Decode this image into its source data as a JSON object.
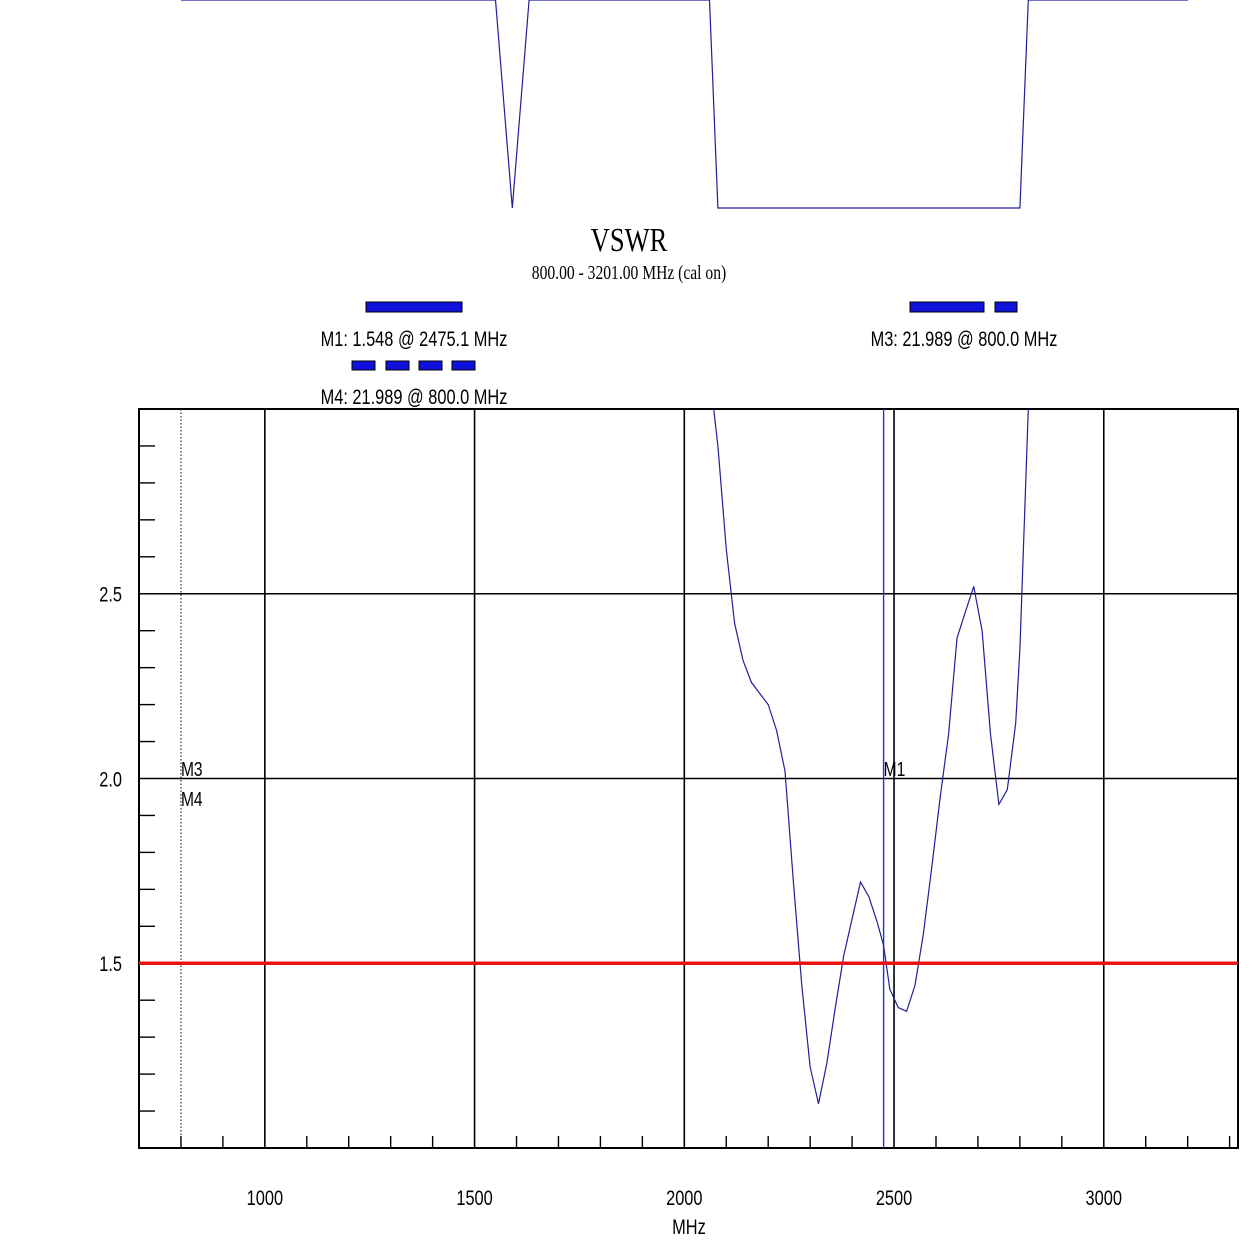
{
  "chart_data": [
    {
      "type": "line",
      "title": "",
      "xlim": [
        700,
        3320
      ],
      "series": [
        {
          "x": [
            800,
            1150,
            1550,
            1570,
            1590,
            1610,
            1630,
            1650,
            2060,
            2070,
            2080,
            2800,
            2810,
            2820,
            3201
          ],
          "y": [
            1.0,
            1.0,
            1.0,
            0.5,
            0.0,
            0.5,
            1.0,
            1.0,
            1.0,
            0.5,
            0.0,
            0.0,
            0.5,
            1.0,
            1.0
          ]
        }
      ]
    },
    {
      "type": "line",
      "title": "VSWR",
      "subtitle": "800.00 - 3201.00 MHz (cal on)",
      "xlabel": "MHz",
      "ylabel": "",
      "xlim": [
        700,
        3320
      ],
      "ylim": [
        1.0,
        3.0
      ],
      "x_ticks": [
        1000,
        1500,
        2000,
        2500,
        3000
      ],
      "y_ticks": [
        1.5,
        2.0,
        2.5
      ],
      "y_tick_labels": [
        "1.5",
        "2.0",
        "2.5"
      ],
      "grid": true,
      "series": [
        {
          "color": "#1f1f99",
          "x": [
            2070,
            2080,
            2100,
            2120,
            2140,
            2160,
            2180,
            2200,
            2220,
            2240,
            2260,
            2280,
            2300,
            2320,
            2340,
            2360,
            2380,
            2400,
            2420,
            2440,
            2460,
            2475.1,
            2490,
            2510,
            2530,
            2550,
            2570,
            2590,
            2610,
            2630,
            2650,
            2670,
            2690,
            2710,
            2730,
            2750,
            2770,
            2790,
            2800,
            2820
          ],
          "y": [
            3.0,
            2.9,
            2.62,
            2.42,
            2.32,
            2.26,
            2.23,
            2.2,
            2.13,
            2.02,
            1.72,
            1.44,
            1.22,
            1.12,
            1.23,
            1.38,
            1.52,
            1.62,
            1.72,
            1.68,
            1.61,
            1.548,
            1.43,
            1.38,
            1.37,
            1.44,
            1.58,
            1.76,
            1.95,
            2.12,
            2.38,
            2.45,
            2.52,
            2.4,
            2.12,
            1.93,
            1.97,
            2.15,
            2.35,
            3.0
          ]
        }
      ],
      "reference_line": {
        "y": 1.5,
        "color": "#ee1111"
      },
      "markers": [
        {
          "name": "M1",
          "x": 2475.1,
          "text": "M1: 1.548  @ 2475.1 MHz"
        },
        {
          "name": "M3",
          "x": 800.0,
          "text": "M3: 21.989  @ 800.0 MHz"
        },
        {
          "name": "M4",
          "x": 800.0,
          "text": "M4: 21.989  @ 800.0 MHz"
        }
      ],
      "marker_bar_color": "#1111dd"
    }
  ]
}
